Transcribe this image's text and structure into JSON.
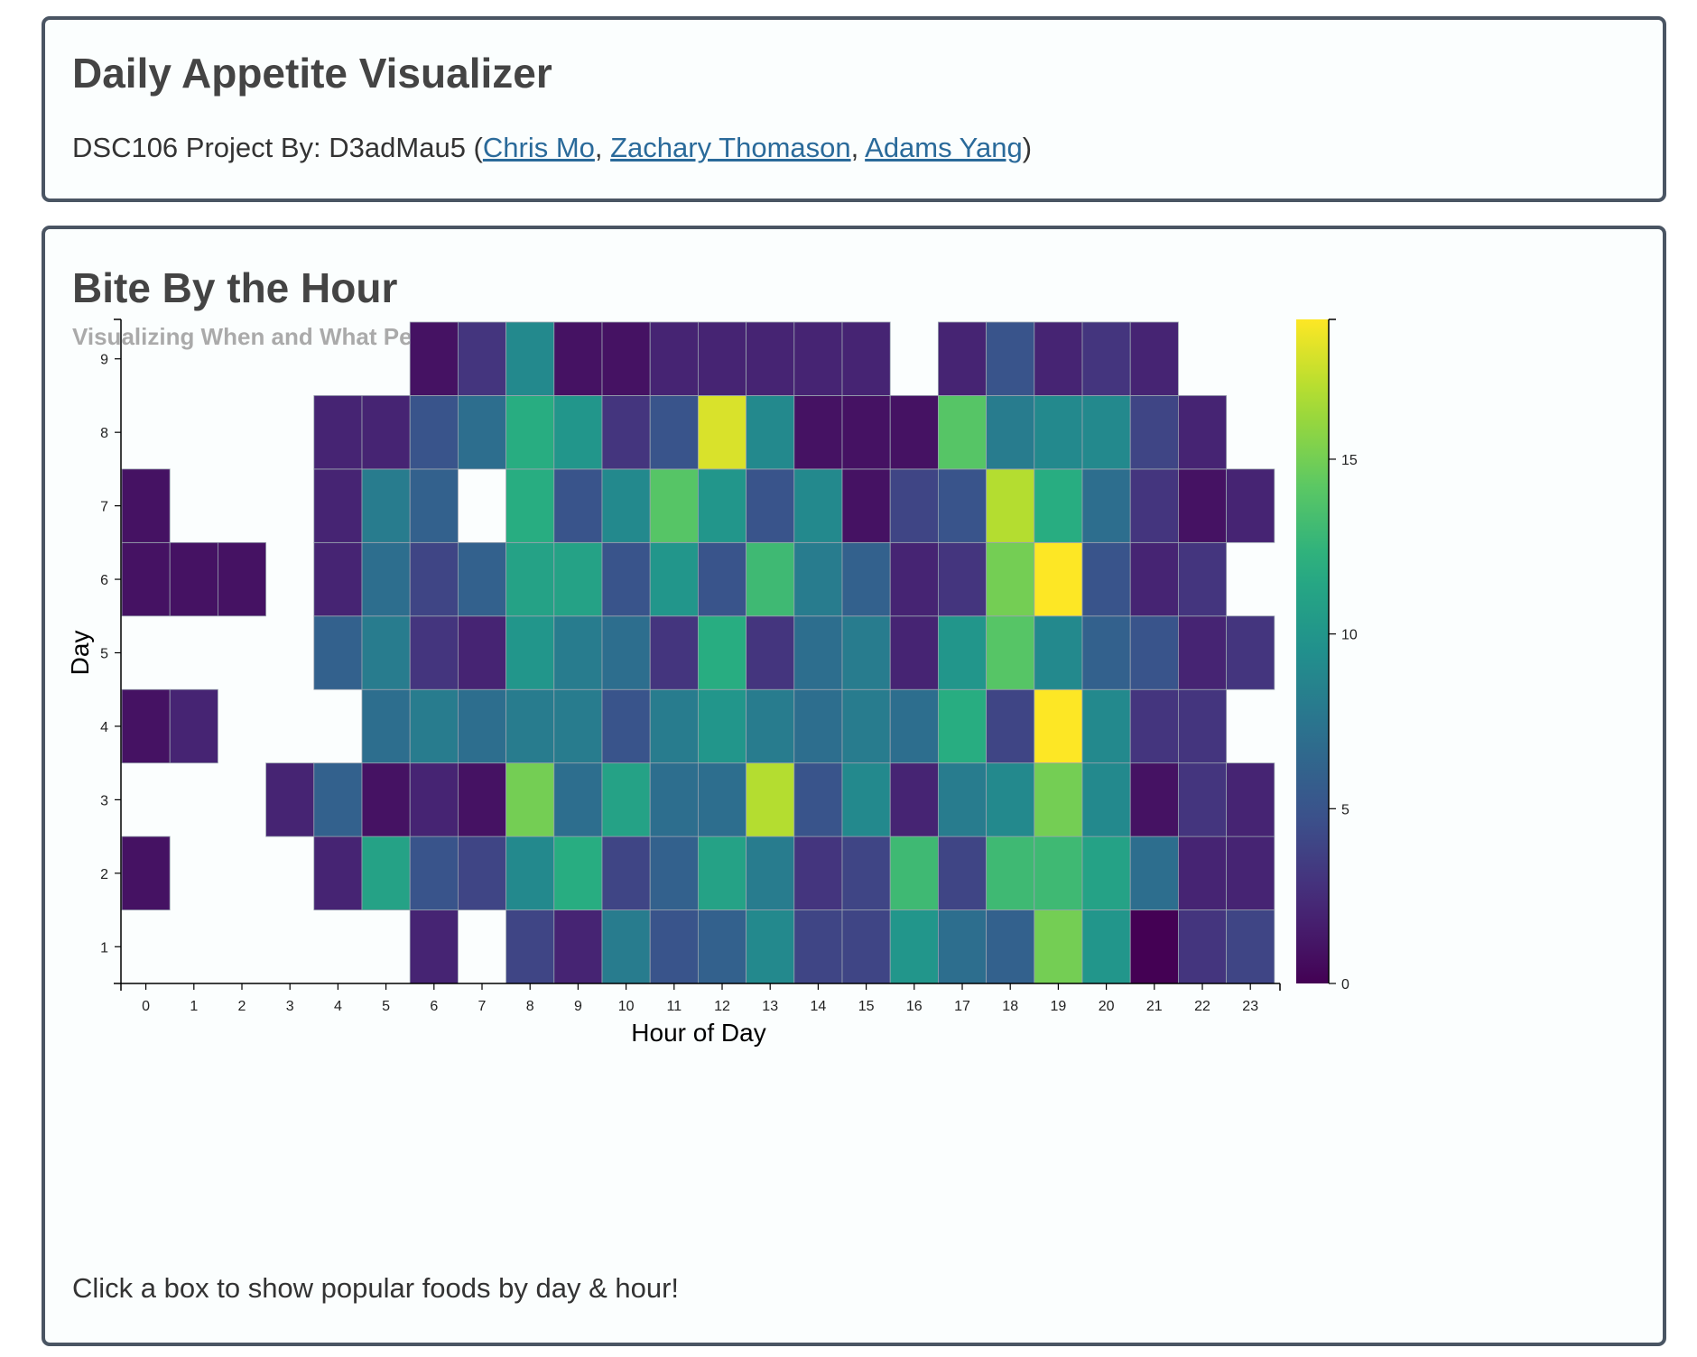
{
  "header": {
    "title": "Daily Appetite Visualizer",
    "byline_prefix": "DSC106 Project By: D3adMau5 (",
    "authors": [
      "Chris Mo",
      "Zachary Thomason",
      "Adams Yang"
    ],
    "separator": ", ",
    "byline_suffix": ")"
  },
  "section": {
    "title": "Bite By the Hour",
    "subtitle": "Visualizing When and What People Eat",
    "hint": "Click a box to show popular foods by day & hour!"
  },
  "colors": {
    "card_border": "#4a5563",
    "card_background": "#fbfefe",
    "link": "#2a6a9a",
    "colormap": "viridis"
  },
  "chart_data": {
    "type": "heatmap",
    "xlabel": "Hour of Day",
    "ylabel": "Day",
    "x_categories": [
      0,
      1,
      2,
      3,
      4,
      5,
      6,
      7,
      8,
      9,
      10,
      11,
      12,
      13,
      14,
      15,
      16,
      17,
      18,
      19,
      20,
      21,
      22,
      23
    ],
    "y_categories": [
      1,
      2,
      3,
      4,
      5,
      6,
      7,
      8,
      9
    ],
    "color_range": [
      0,
      19
    ],
    "colorbar_ticks": [
      0,
      5,
      10,
      15
    ],
    "missing_value": "blank",
    "values": {
      "1": [
        null,
        null,
        null,
        null,
        null,
        null,
        2,
        null,
        4,
        2,
        8,
        5,
        6,
        9,
        4,
        4,
        10,
        7,
        6,
        15,
        10,
        0,
        3,
        4
      ],
      "2": [
        1,
        null,
        null,
        null,
        2,
        11,
        5,
        4,
        9,
        12,
        4,
        6,
        11,
        8,
        3,
        4,
        13,
        4,
        13,
        13,
        11,
        7,
        2,
        2
      ],
      "3": [
        null,
        null,
        null,
        2,
        6,
        1,
        2,
        1,
        15,
        7,
        11,
        7,
        7,
        17,
        5,
        9,
        2,
        8,
        9,
        15,
        9,
        1,
        3,
        2
      ],
      "4": [
        1,
        2,
        null,
        null,
        null,
        7,
        8,
        7,
        8,
        8,
        5,
        8,
        10,
        8,
        7,
        8,
        7,
        12,
        4,
        19,
        9,
        3,
        3,
        null
      ],
      "5": [
        null,
        null,
        null,
        null,
        6,
        8,
        3,
        2,
        10,
        8,
        7,
        3,
        12,
        3,
        7,
        8,
        2,
        10,
        14,
        9,
        6,
        5,
        2,
        3
      ],
      "6": [
        1,
        1,
        1,
        null,
        2,
        7,
        4,
        6,
        11,
        11,
        5,
        10,
        5,
        13,
        8,
        6,
        2,
        3,
        15,
        19,
        5,
        2,
        3,
        null
      ],
      "7": [
        1,
        null,
        null,
        null,
        2,
        8,
        6,
        null,
        12,
        5,
        9,
        14,
        10,
        5,
        9,
        1,
        4,
        5,
        17,
        12,
        7,
        3,
        1,
        2
      ],
      "8": [
        null,
        null,
        null,
        null,
        2,
        2,
        5,
        7,
        12,
        10,
        3,
        5,
        18,
        9,
        1,
        1,
        1,
        14,
        8,
        9,
        9,
        4,
        2,
        null
      ],
      "9": [
        null,
        null,
        null,
        null,
        null,
        null,
        1,
        3,
        9,
        1,
        1,
        2,
        2,
        2,
        2,
        2,
        null,
        2,
        5,
        2,
        3,
        2,
        null,
        null
      ]
    }
  }
}
